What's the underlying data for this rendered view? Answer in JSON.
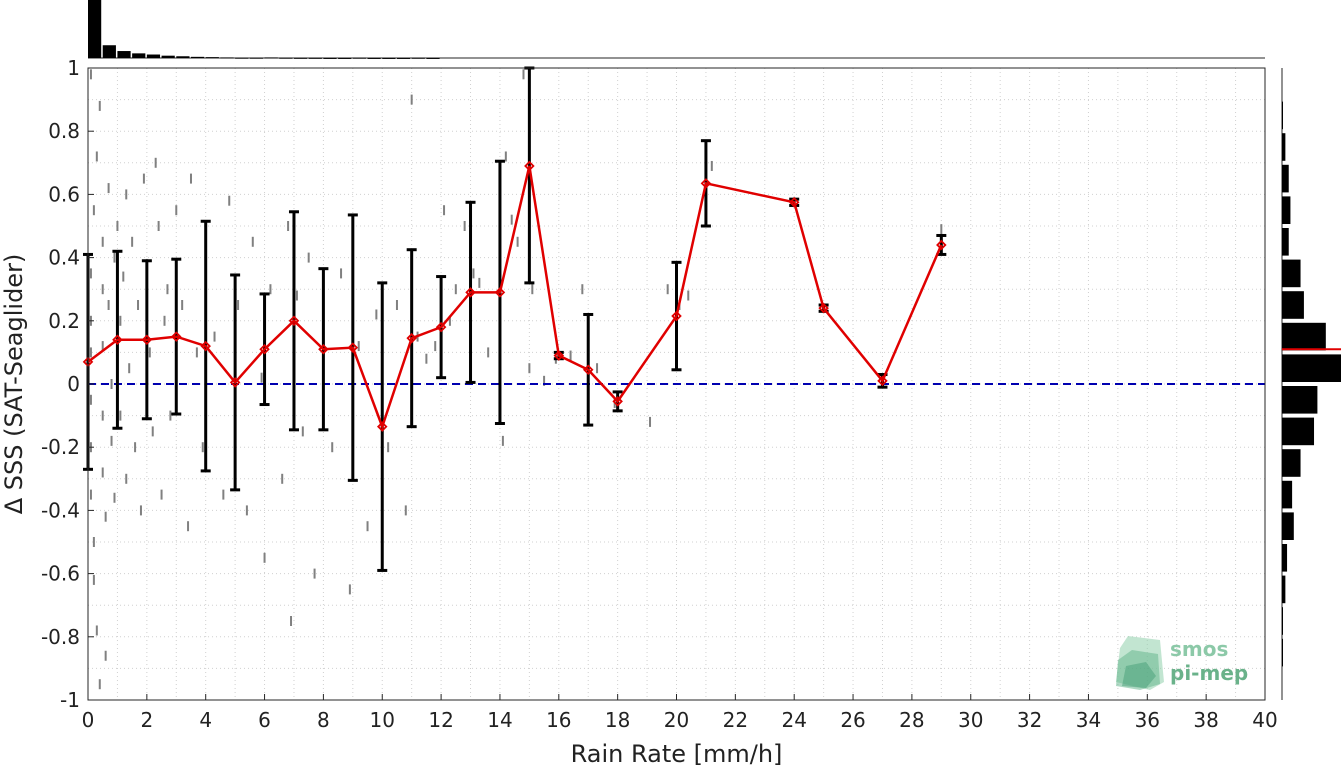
{
  "chart_data": {
    "type": "line",
    "xlabel": "Rain Rate [mm/h]",
    "ylabel": "Δ SSS (SAT-Seaglider)",
    "xlim": [
      0,
      40
    ],
    "ylim": [
      -1,
      1
    ],
    "x_ticks": [
      "0",
      "2",
      "4",
      "6",
      "8",
      "10",
      "12",
      "14",
      "16",
      "18",
      "20",
      "22",
      "24",
      "26",
      "28",
      "30",
      "32",
      "34",
      "36",
      "38",
      "40"
    ],
    "y_ticks": [
      "-1",
      "-0.8",
      "-0.6",
      "-0.4",
      "-0.2",
      "0",
      "0.2",
      "0.4",
      "0.6",
      "0.8",
      "1"
    ],
    "grid": true,
    "reference_line": {
      "y": 0,
      "style": "dashed",
      "color": "#0000b0"
    },
    "series": [
      {
        "type": "line-with-errorbars",
        "color": "#e00000",
        "errorbar_color": "#000000",
        "points": [
          {
            "x": 0,
            "y": 0.07,
            "err": 0.34
          },
          {
            "x": 1,
            "y": 0.14,
            "err": 0.28
          },
          {
            "x": 2,
            "y": 0.14,
            "err": 0.25
          },
          {
            "x": 3,
            "y": 0.15,
            "err": 0.245
          },
          {
            "x": 4,
            "y": 0.12,
            "err": 0.395
          },
          {
            "x": 5,
            "y": 0.005,
            "err": 0.34
          },
          {
            "x": 6,
            "y": 0.11,
            "err": 0.175
          },
          {
            "x": 7,
            "y": 0.2,
            "err": 0.345
          },
          {
            "x": 8,
            "y": 0.11,
            "err": 0.255
          },
          {
            "x": 9,
            "y": 0.115,
            "err": 0.42
          },
          {
            "x": 10,
            "y": -0.135,
            "err": 0.455
          },
          {
            "x": 11,
            "y": 0.145,
            "err": 0.28
          },
          {
            "x": 12,
            "y": 0.18,
            "err": 0.16
          },
          {
            "x": 13,
            "y": 0.29,
            "err": 0.285
          },
          {
            "x": 14,
            "y": 0.29,
            "err": 0.415
          },
          {
            "x": 15,
            "y": 0.69,
            "err": 0.37
          },
          {
            "x": 16,
            "y": 0.09,
            "err": 0.01
          },
          {
            "x": 17,
            "y": 0.045,
            "err": 0.175
          },
          {
            "x": 18,
            "y": -0.055,
            "err": 0.03
          },
          {
            "x": 20,
            "y": 0.215,
            "err": 0.17
          },
          {
            "x": 21,
            "y": 0.635,
            "err": 0.135
          },
          {
            "x": 24,
            "y": 0.575,
            "err": 0.01
          },
          {
            "x": 25,
            "y": 0.24,
            "err": 0.01
          },
          {
            "x": 27,
            "y": 0.01,
            "err": 0.02
          },
          {
            "x": 29,
            "y": 0.44,
            "err": 0.03
          }
        ]
      }
    ],
    "scatter_color": "#808080",
    "scatter": [
      [
        0.1,
        0.98
      ],
      [
        0.1,
        0.35
      ],
      [
        0.1,
        0.2
      ],
      [
        0.1,
        0.1
      ],
      [
        0.1,
        -0.05
      ],
      [
        0.1,
        -0.2
      ],
      [
        0.1,
        -0.35
      ],
      [
        0.2,
        -0.5
      ],
      [
        0.2,
        -0.62
      ],
      [
        0.3,
        -0.78
      ],
      [
        0.2,
        0.55
      ],
      [
        0.3,
        0.72
      ],
      [
        0.4,
        0.88
      ],
      [
        0.5,
        0.45
      ],
      [
        0.5,
        0.3
      ],
      [
        0.5,
        0.12
      ],
      [
        0.5,
        -0.1
      ],
      [
        0.5,
        -0.28
      ],
      [
        0.6,
        -0.42
      ],
      [
        0.7,
        0.62
      ],
      [
        0.7,
        0.25
      ],
      [
        0.8,
        0.0
      ],
      [
        0.8,
        -0.18
      ],
      [
        0.9,
        0.4
      ],
      [
        0.9,
        -0.36
      ],
      [
        0.6,
        -0.86
      ],
      [
        0.4,
        -0.95
      ],
      [
        1.0,
        0.5
      ],
      [
        1.1,
        0.2
      ],
      [
        1.1,
        -0.1
      ],
      [
        1.2,
        0.34
      ],
      [
        1.3,
        0.6
      ],
      [
        1.3,
        -0.3
      ],
      [
        1.4,
        0.05
      ],
      [
        1.5,
        0.45
      ],
      [
        1.6,
        -0.2
      ],
      [
        1.7,
        0.25
      ],
      [
        1.8,
        -0.4
      ],
      [
        1.9,
        0.65
      ],
      [
        2.0,
        0.38
      ],
      [
        2.1,
        0.1
      ],
      [
        2.2,
        -0.15
      ],
      [
        2.3,
        0.7
      ],
      [
        2.4,
        0.5
      ],
      [
        2.5,
        -0.35
      ],
      [
        2.6,
        0.2
      ],
      [
        2.7,
        0.3
      ],
      [
        2.8,
        -0.1
      ],
      [
        3.0,
        0.55
      ],
      [
        3.2,
        0.25
      ],
      [
        3.4,
        -0.45
      ],
      [
        3.5,
        0.65
      ],
      [
        3.7,
        0.1
      ],
      [
        3.9,
        -0.2
      ],
      [
        4.0,
        0.35
      ],
      [
        4.3,
        0.15
      ],
      [
        4.6,
        -0.35
      ],
      [
        4.8,
        0.58
      ],
      [
        5.0,
        -0.05
      ],
      [
        5.1,
        0.25
      ],
      [
        5.4,
        -0.4
      ],
      [
        5.6,
        0.45
      ],
      [
        5.9,
        0.02
      ],
      [
        6.0,
        -0.55
      ],
      [
        6.2,
        0.3
      ],
      [
        6.6,
        -0.3
      ],
      [
        6.8,
        0.5
      ],
      [
        6.9,
        -0.75
      ],
      [
        7.1,
        0.28
      ],
      [
        7.3,
        -0.15
      ],
      [
        7.5,
        0.4
      ],
      [
        7.7,
        -0.6
      ],
      [
        8.0,
        0.05
      ],
      [
        8.3,
        -0.2
      ],
      [
        8.6,
        0.35
      ],
      [
        8.9,
        -0.65
      ],
      [
        9.2,
        0.12
      ],
      [
        9.5,
        -0.45
      ],
      [
        9.8,
        0.22
      ],
      [
        10.2,
        -0.2
      ],
      [
        10.5,
        0.25
      ],
      [
        10.8,
        -0.4
      ],
      [
        11.0,
        0.9
      ],
      [
        11.2,
        0.15
      ],
      [
        11.5,
        0.08
      ],
      [
        11.8,
        0.12
      ],
      [
        12.1,
        0.55
      ],
      [
        12.3,
        0.2
      ],
      [
        12.5,
        0.3
      ],
      [
        12.8,
        0.5
      ],
      [
        13.1,
        0.35
      ],
      [
        13.3,
        0.32
      ],
      [
        13.6,
        0.1
      ],
      [
        14.0,
        0.3
      ],
      [
        14.1,
        -0.18
      ],
      [
        14.2,
        0.72
      ],
      [
        14.4,
        0.52
      ],
      [
        14.6,
        0.45
      ],
      [
        14.8,
        0.98
      ],
      [
        15.0,
        0.05
      ],
      [
        15.1,
        0.3
      ],
      [
        15.5,
        0.01
      ],
      [
        15.9,
        0.08
      ],
      [
        16.4,
        0.09
      ],
      [
        16.8,
        0.3
      ],
      [
        17.3,
        0.05
      ],
      [
        17.9,
        -0.06
      ],
      [
        19.1,
        -0.12
      ],
      [
        19.7,
        0.3
      ],
      [
        20.1,
        0.25
      ],
      [
        20.4,
        0.28
      ],
      [
        21.0,
        0.62
      ],
      [
        21.2,
        0.69
      ],
      [
        24.0,
        0.575
      ],
      [
        25.0,
        0.24
      ],
      [
        27.0,
        0.01
      ],
      [
        29.0,
        0.44
      ],
      [
        29.0,
        0.49
      ]
    ],
    "top_histogram": {
      "bin_starts": [
        0,
        0.5,
        1,
        1.5,
        2,
        2.5,
        3,
        3.5,
        4,
        4.5,
        5,
        5.5,
        6,
        6.5,
        7,
        7.5,
        8,
        8.5,
        9,
        9.5,
        10,
        10.5,
        11,
        11.5
      ],
      "values": [
        100,
        22,
        12,
        8,
        6,
        4,
        3,
        2,
        1.5,
        1,
        0.5,
        0.5,
        1,
        0.5,
        0.3,
        0.3,
        0.1,
        0.1,
        0.5,
        0.1,
        0.1,
        0.1,
        0.4,
        0.1
      ]
    },
    "right_histogram": {
      "bin_centers": [
        0.85,
        0.75,
        0.65,
        0.55,
        0.45,
        0.35,
        0.25,
        0.15,
        0.05,
        -0.05,
        -0.15,
        -0.25,
        -0.35,
        -0.45,
        -0.55,
        -0.65,
        -0.75,
        -0.85
      ],
      "values": [
        0.5,
        2,
        4,
        5,
        4,
        11,
        13,
        26,
        35,
        21,
        19,
        11,
        6,
        7,
        3,
        2,
        0.4,
        0.3
      ],
      "mean": 0.11,
      "mean_color": "#e00000"
    }
  },
  "logo": {
    "line1": "smos",
    "line2": "pi-mep"
  }
}
